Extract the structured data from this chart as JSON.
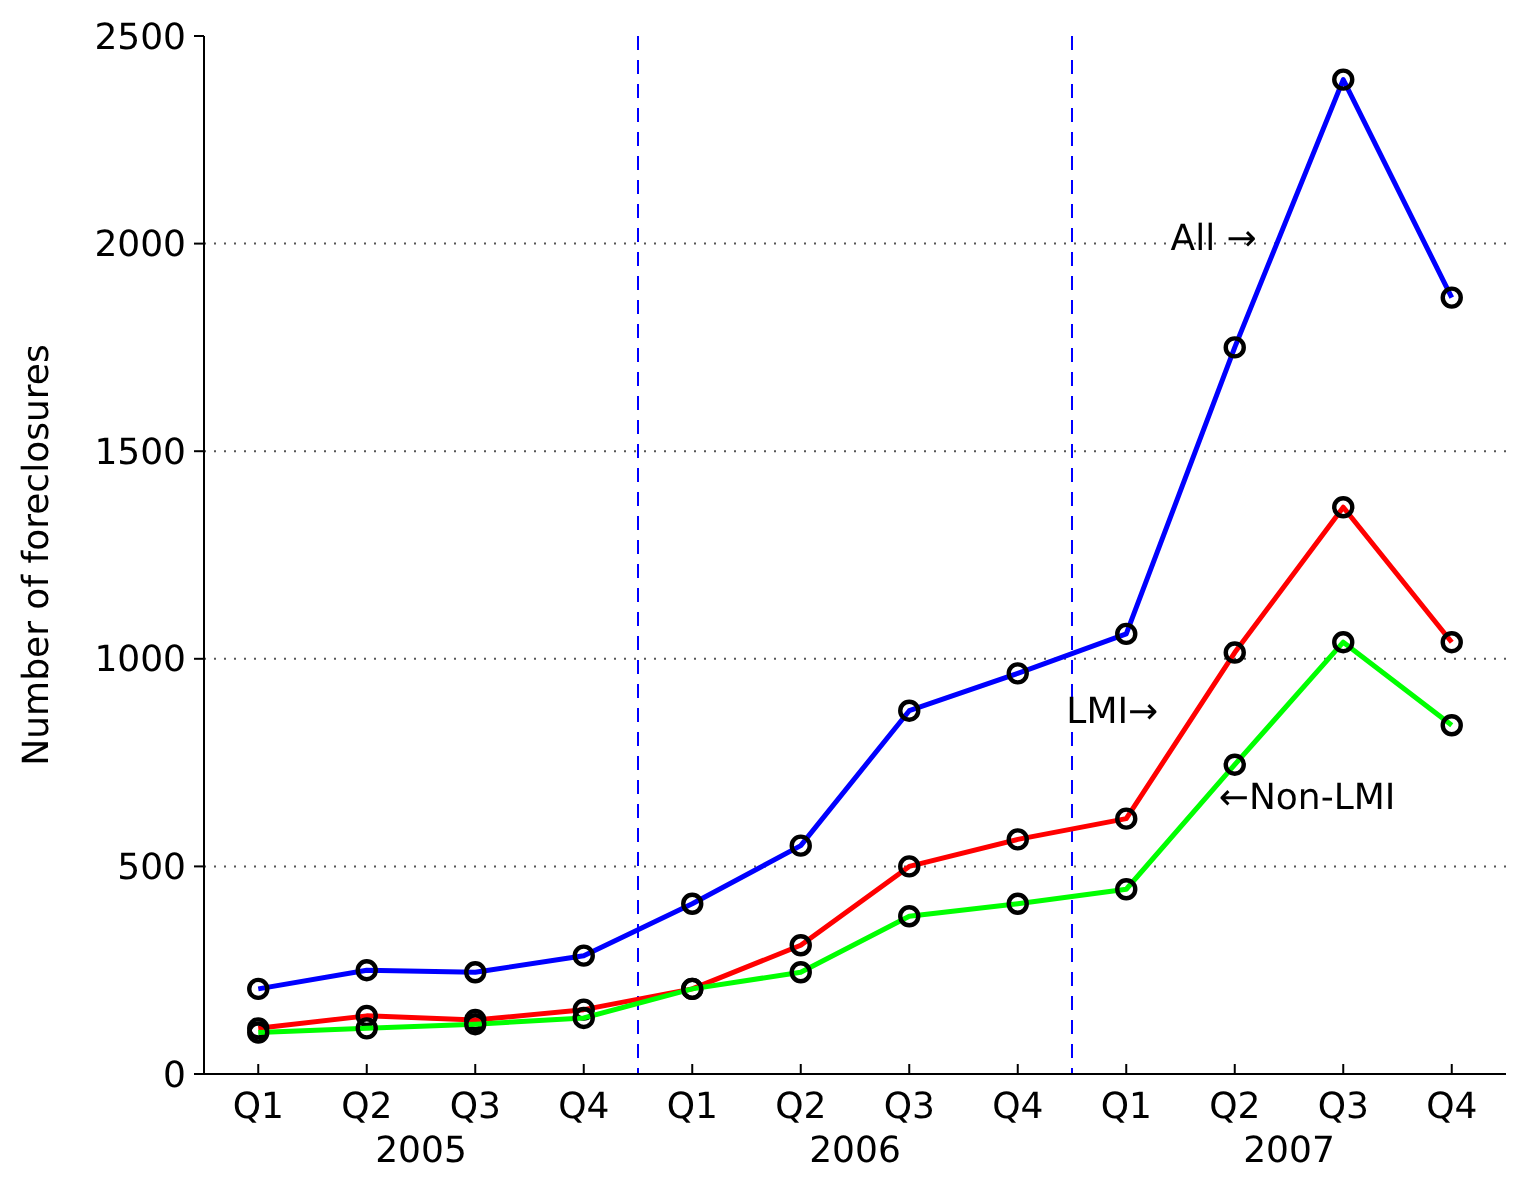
{
  "chart_data": {
    "type": "line",
    "ylabel": "Number of foreclosures",
    "categories": [
      "Q1",
      "Q2",
      "Q3",
      "Q4",
      "Q1",
      "Q2",
      "Q3",
      "Q4",
      "Q1",
      "Q2",
      "Q3",
      "Q4"
    ],
    "ylim": [
      0,
      2500
    ],
    "yticks": [
      0,
      500,
      1000,
      1500,
      2000,
      2500
    ],
    "grid": "y",
    "marker": "circle",
    "line_style": "solid",
    "series": [
      {
        "name": "All →",
        "color": "#0000ff",
        "values": [
          205,
          250,
          245,
          285,
          410,
          550,
          875,
          965,
          1060,
          1750,
          2395,
          1870
        ]
      },
      {
        "name": "LMI→",
        "color": "#ff0000",
        "values": [
          110,
          140,
          130,
          155,
          205,
          310,
          500,
          565,
          615,
          1015,
          1365,
          1040
        ]
      },
      {
        "name": "←Non-LMI",
        "color": "#00ff00",
        "values": [
          100,
          110,
          120,
          135,
          205,
          245,
          380,
          410,
          445,
          745,
          1040,
          840
        ]
      }
    ],
    "annotations": [
      "2005",
      "2006",
      "2007"
    ]
  }
}
